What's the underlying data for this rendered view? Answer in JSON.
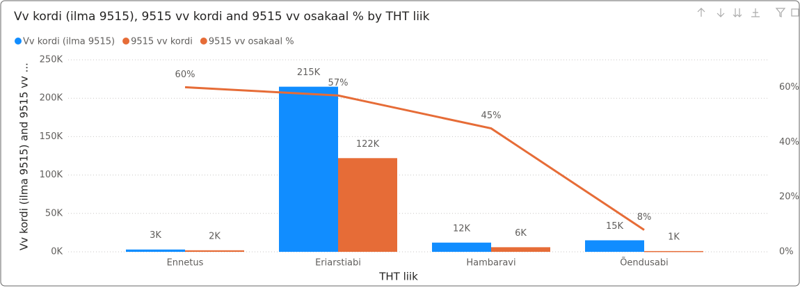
{
  "chart_data": {
    "type": "combo",
    "title": "Vv kordi (ilma 9515), 9515 vv kordi and 9515 vv osakaal % by THT liik",
    "x_label": "THT liik",
    "y_label": "Vv kordi (ilma 9515) and 9515 vv ...",
    "categories": [
      "Ennetus",
      "Eriarstiabi",
      "Hambaravi",
      "Õendusabi"
    ],
    "series": [
      {
        "name": "Vv kordi (ilma 9515)",
        "color": "#118DFF",
        "kind": "bar",
        "values": [
          3000,
          215000,
          12000,
          15000
        ],
        "value_labels": [
          "3K",
          "215K",
          "12K",
          "15K"
        ]
      },
      {
        "name": "9515 vv kordi",
        "color": "#E66C37",
        "kind": "bar",
        "values": [
          2000,
          122000,
          6000,
          1000
        ],
        "value_labels": [
          "2K",
          "122K",
          "6K",
          "1K"
        ]
      },
      {
        "name": "9515 vv osakaal %",
        "color": "#E66C37",
        "kind": "line",
        "axis": "y2",
        "values": [
          60,
          57,
          45,
          8
        ],
        "value_labels": [
          "60%",
          "57%",
          "45%",
          "8%"
        ]
      }
    ],
    "ylim": [
      0,
      250000
    ],
    "yticks": [
      {
        "value": 0,
        "label": "0K"
      },
      {
        "value": 50000,
        "label": "50K"
      },
      {
        "value": 100000,
        "label": "100K"
      },
      {
        "value": 150000,
        "label": "150K"
      },
      {
        "value": 200000,
        "label": "200K"
      },
      {
        "value": 250000,
        "label": "250K"
      }
    ],
    "y2lim": [
      0,
      70
    ],
    "y2ticks": [
      {
        "value": 0,
        "label": "0%"
      },
      {
        "value": 20,
        "label": "20%"
      },
      {
        "value": 40,
        "label": "40%"
      },
      {
        "value": 60,
        "label": "60%"
      }
    ],
    "grid": true
  }
}
